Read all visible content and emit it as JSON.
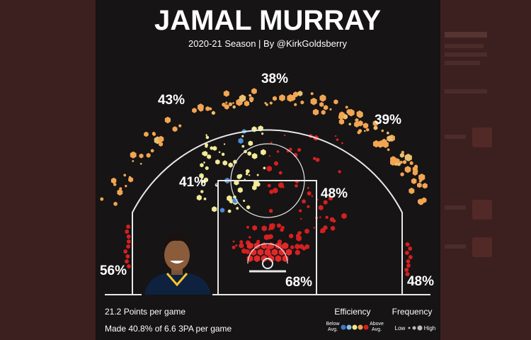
{
  "header": {
    "title": "JAMAL MURRAY",
    "subtitle": "2020-21 Season | By @KirkGoldsberry"
  },
  "zones": [
    {
      "label": "43%"
    },
    {
      "label": "38%"
    },
    {
      "label": "39%"
    },
    {
      "label": "41%"
    },
    {
      "label": "48%"
    },
    {
      "label": "56%"
    },
    {
      "label": "68%"
    },
    {
      "label": "48%"
    }
  ],
  "stats": [
    "21.2 Points per game",
    "Made 40.8% of 6.6 3PA per game"
  ],
  "legend": {
    "efficiency": "Efficiency",
    "frequency": "Frequency",
    "below": [
      "Below",
      "Avg."
    ],
    "above": [
      "Above",
      "Avg."
    ],
    "low": "Low",
    "high": "High"
  }
}
